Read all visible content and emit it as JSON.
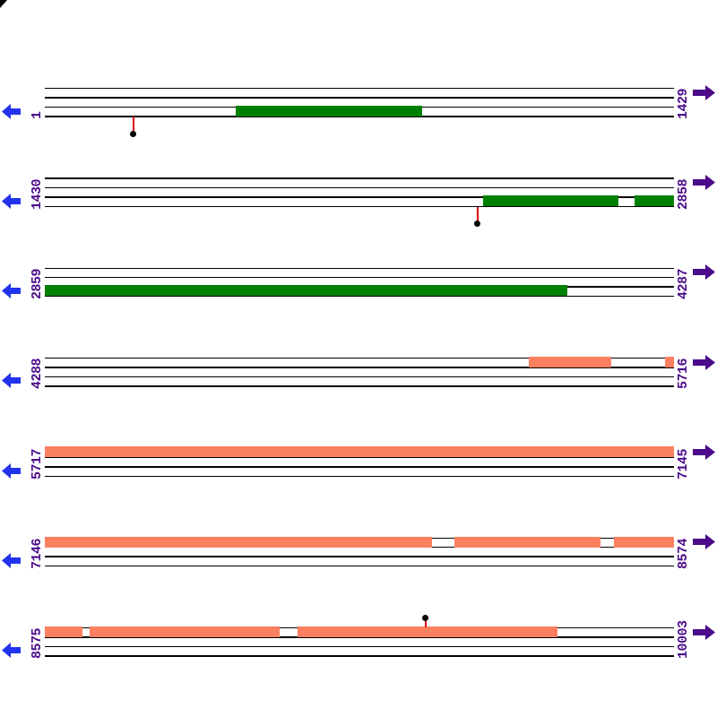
{
  "figure": {
    "type": "genome-segment-map",
    "background": "#FFFFFF",
    "colors": {
      "line": "#000000",
      "green_gene": "#008000",
      "orange_gene": "#FA8060",
      "left_arrow": "#2233EE",
      "right_arrow": "#4B0B8A",
      "label_text": "#4B0B8A",
      "marker_stem": "#E00000",
      "marker_dot": "#000000"
    },
    "corner_mark": true,
    "tracks": [
      {
        "start_label": "1",
        "end_label": "1429",
        "bar_row": "bottom",
        "bar_color_key": "green_gene",
        "segments": [
          [
            0.303,
            0.6
          ]
        ],
        "markers": [
          {
            "x": 0.141,
            "side": "below"
          }
        ]
      },
      {
        "start_label": "1430",
        "end_label": "2858",
        "bar_row": "bottom",
        "bar_color_key": "green_gene",
        "segments": [
          [
            0.697,
            0.912
          ],
          [
            0.937,
            1.0
          ]
        ],
        "markers": [
          {
            "x": 0.688,
            "side": "below"
          }
        ]
      },
      {
        "start_label": "2859",
        "end_label": "4287",
        "bar_row": "bottom",
        "bar_color_key": "green_gene",
        "segments": [
          [
            0.0,
            0.83
          ]
        ],
        "markers": []
      },
      {
        "start_label": "4288",
        "end_label": "5716",
        "bar_row": "top",
        "bar_color_key": "orange_gene",
        "segments": [
          [
            0.769,
            0.9
          ],
          [
            0.986,
            1.0
          ]
        ],
        "markers": []
      },
      {
        "start_label": "5717",
        "end_label": "7145",
        "bar_row": "top",
        "bar_color_key": "orange_gene",
        "segments": [
          [
            0.0,
            1.0
          ]
        ],
        "markers": []
      },
      {
        "start_label": "7146",
        "end_label": "8574",
        "bar_row": "top",
        "bar_color_key": "orange_gene",
        "segments": [
          [
            0.0,
            0.615
          ],
          [
            0.651,
            0.883
          ],
          [
            0.905,
            1.0
          ]
        ],
        "markers": []
      },
      {
        "start_label": "8575",
        "end_label": "10003",
        "bar_row": "top",
        "bar_color_key": "orange_gene",
        "segments": [
          [
            0.0,
            0.06
          ],
          [
            0.071,
            0.373
          ],
          [
            0.402,
            0.815
          ]
        ],
        "markers": [
          {
            "x": 0.605,
            "side": "above"
          }
        ]
      }
    ]
  }
}
